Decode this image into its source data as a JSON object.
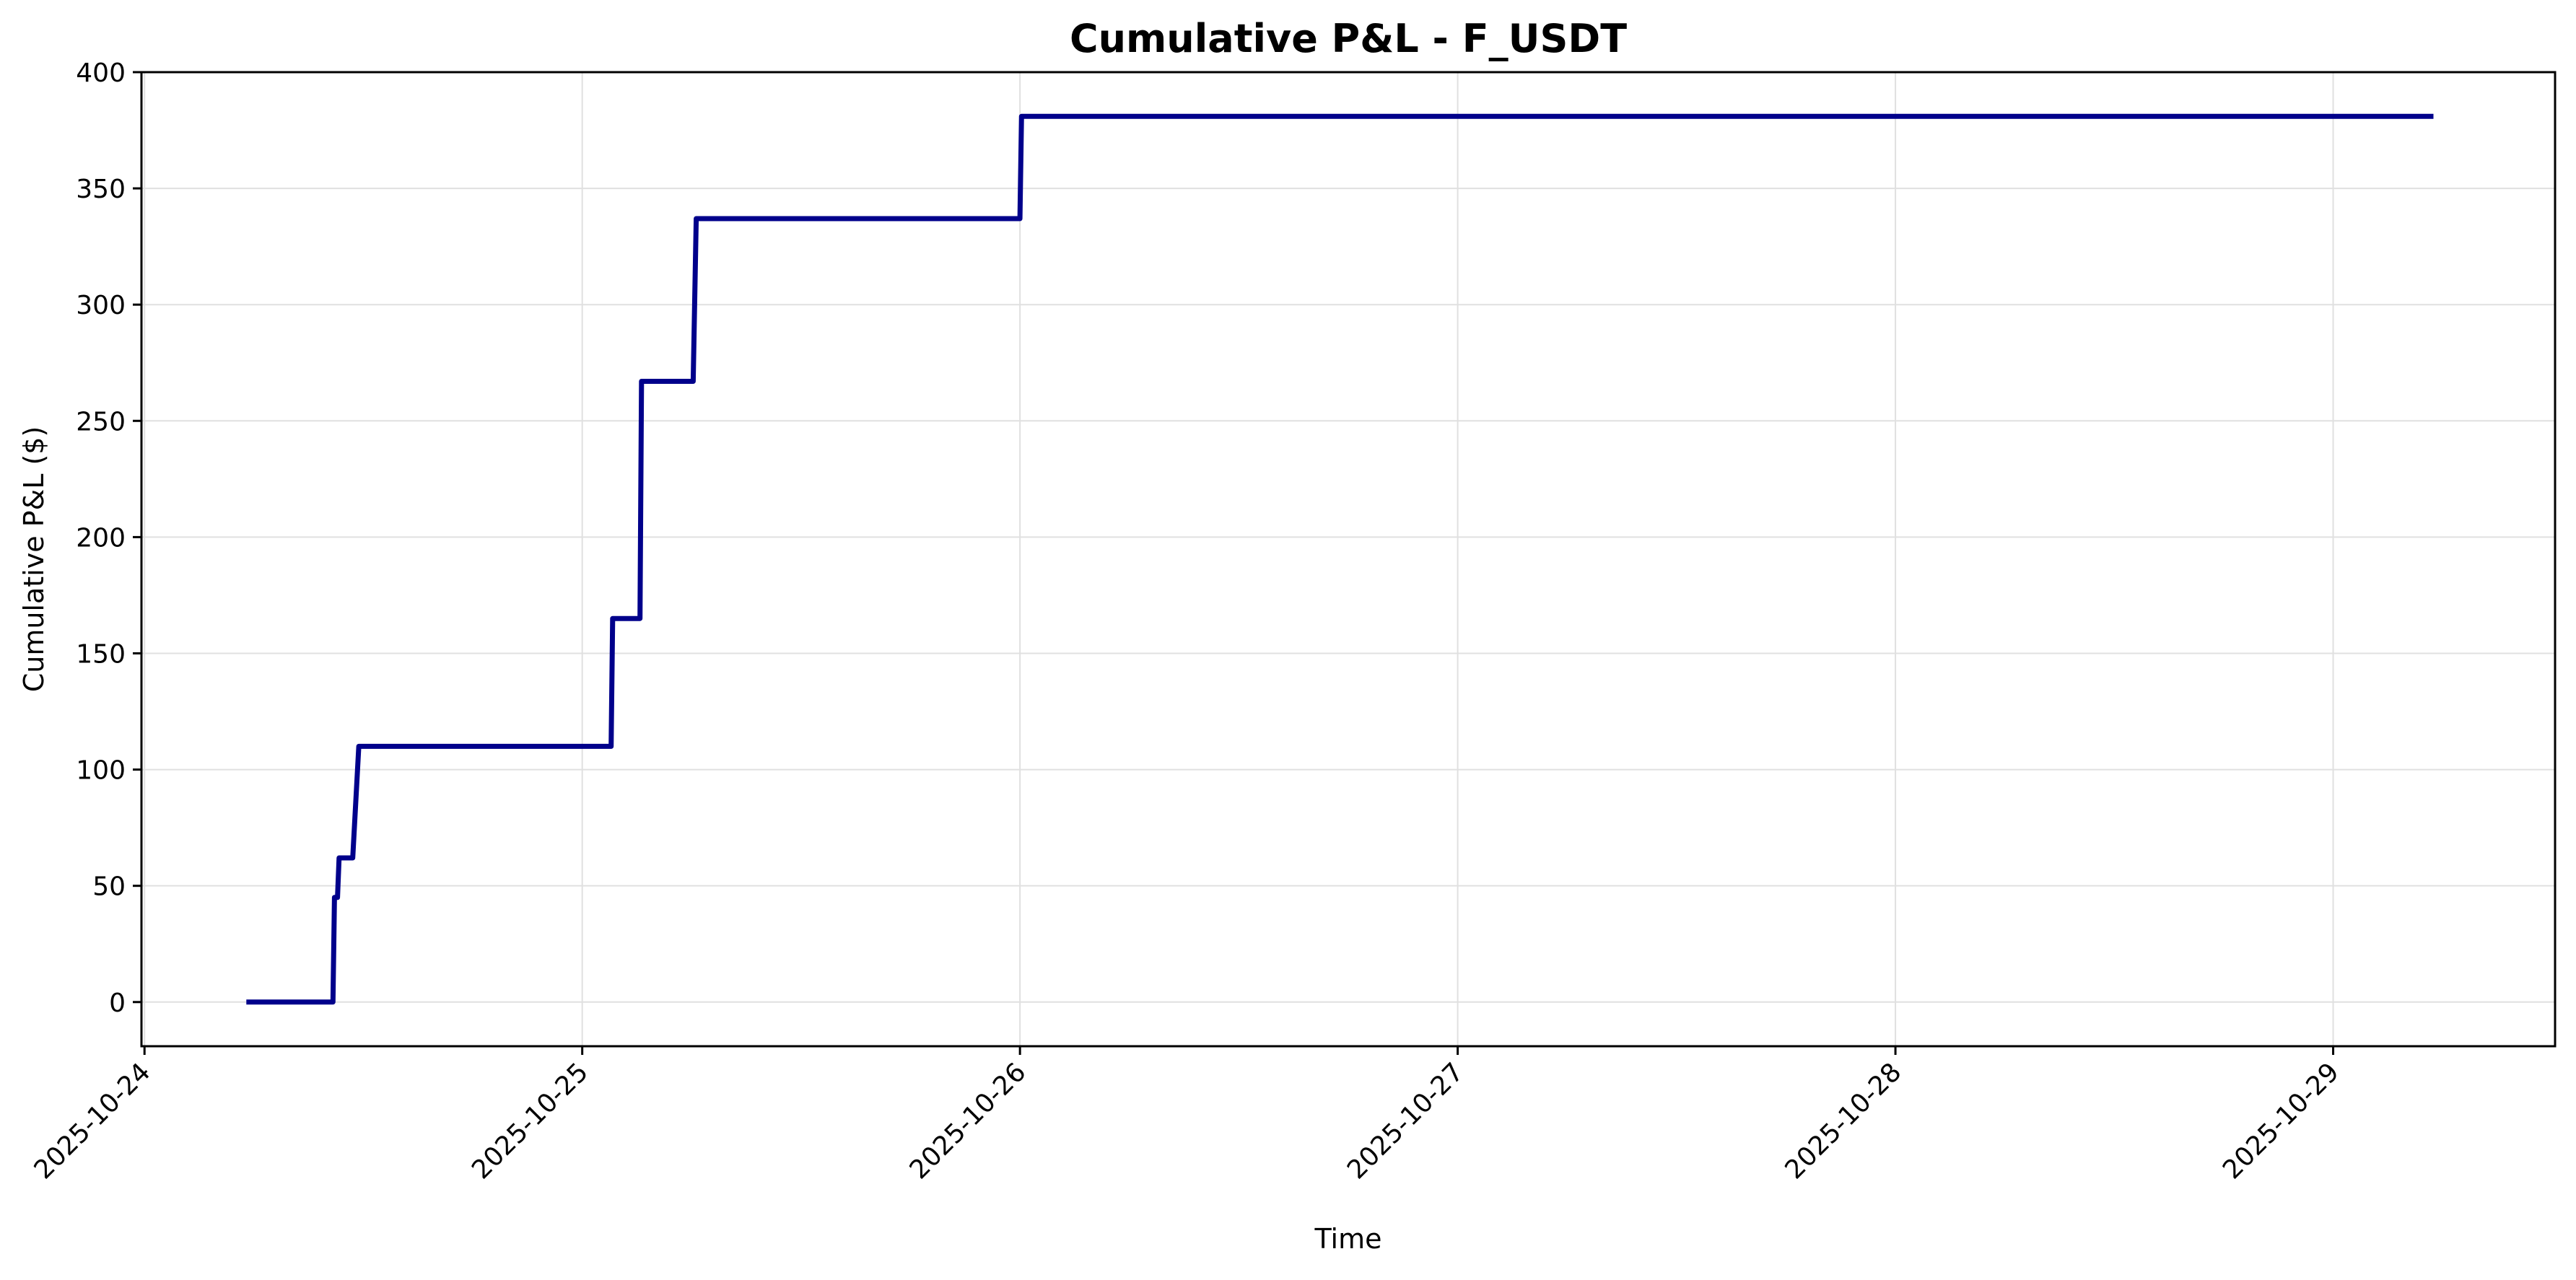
{
  "chart_data": {
    "type": "line",
    "title": "Cumulative P&L - F_USDT",
    "xlabel": "Time",
    "ylabel": "Cumulative P&L ($)",
    "x_axis_type": "datetime",
    "x_ticks": [
      "2025-10-24",
      "2025-10-25",
      "2025-10-26",
      "2025-10-27",
      "2025-10-28",
      "2025-10-29"
    ],
    "y_ticks": [
      0,
      50,
      100,
      150,
      200,
      250,
      300,
      350,
      400
    ],
    "xlim": [
      "2025-10-23 23:50",
      "2025-10-29 12:10"
    ],
    "ylim": [
      -19,
      400
    ],
    "grid": true,
    "line_color": "#00008b",
    "grid_color": "#e0e0e0",
    "series": [
      {
        "x": [
          "2025-10-24 05:35",
          "2025-10-24 10:20",
          "2025-10-24 10:25",
          "2025-10-24 10:35",
          "2025-10-24 10:40",
          "2025-10-24 11:25",
          "2025-10-24 11:45",
          "2025-10-24 12:20",
          "2025-10-24 12:40",
          "2025-10-25 01:35",
          "2025-10-25 01:40",
          "2025-10-25 03:10",
          "2025-10-25 03:15",
          "2025-10-25 06:05",
          "2025-10-25 06:15",
          "2025-10-26 00:00",
          "2025-10-26 00:05",
          "2025-10-29 05:30"
        ],
        "y": [
          0,
          0,
          45,
          45,
          62,
          62,
          110,
          110,
          110,
          110,
          165,
          165,
          267,
          267,
          337,
          337,
          381,
          381
        ]
      }
    ]
  }
}
